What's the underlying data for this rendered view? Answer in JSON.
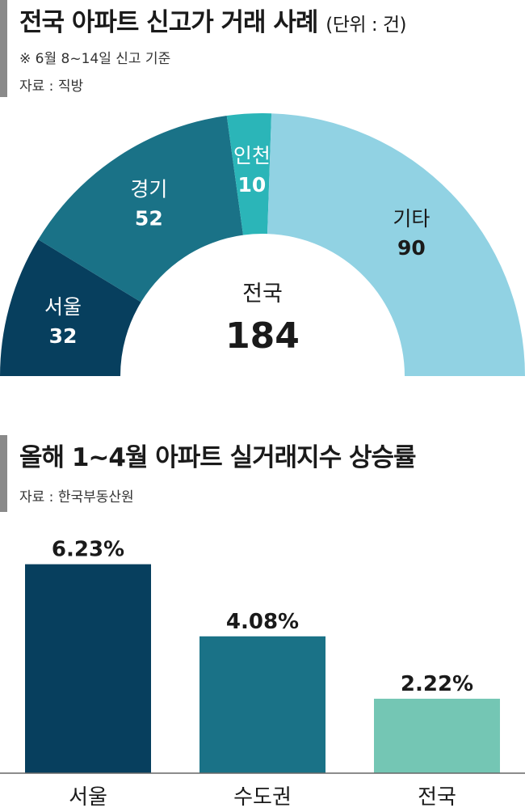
{
  "section1": {
    "title": "전국 아파트 신고가 거래 사례",
    "unit": "(단위 : 건)",
    "note": "※ 6월 8~14일 신고 기준",
    "source": "자료 : 직방"
  },
  "section2": {
    "title": "올해 1~4월 아파트 실거래지수 상승률",
    "source": "자료 : 한국부동산원"
  },
  "chart_data": [
    {
      "type": "pie",
      "subtype": "half-donut",
      "center_label": "전국",
      "center_value": "184",
      "slices": [
        {
          "label": "서울",
          "value": 32,
          "color": "#073f5e"
        },
        {
          "label": "경기",
          "value": 52,
          "color": "#1a7287"
        },
        {
          "label": "인천",
          "value": 10,
          "color": "#2bb5b8"
        },
        {
          "label": "기타",
          "value": 90,
          "color": "#91d2e3"
        }
      ]
    },
    {
      "type": "bar",
      "categories": [
        "서울",
        "수도권",
        "전국"
      ],
      "values": [
        6.23,
        4.08,
        2.22
      ],
      "value_labels": [
        "6.23%",
        "4.08%",
        "2.22%"
      ],
      "colors": [
        "#073f5e",
        "#1a7287",
        "#74c6b4"
      ],
      "ylim": [
        0,
        6.8
      ]
    }
  ]
}
